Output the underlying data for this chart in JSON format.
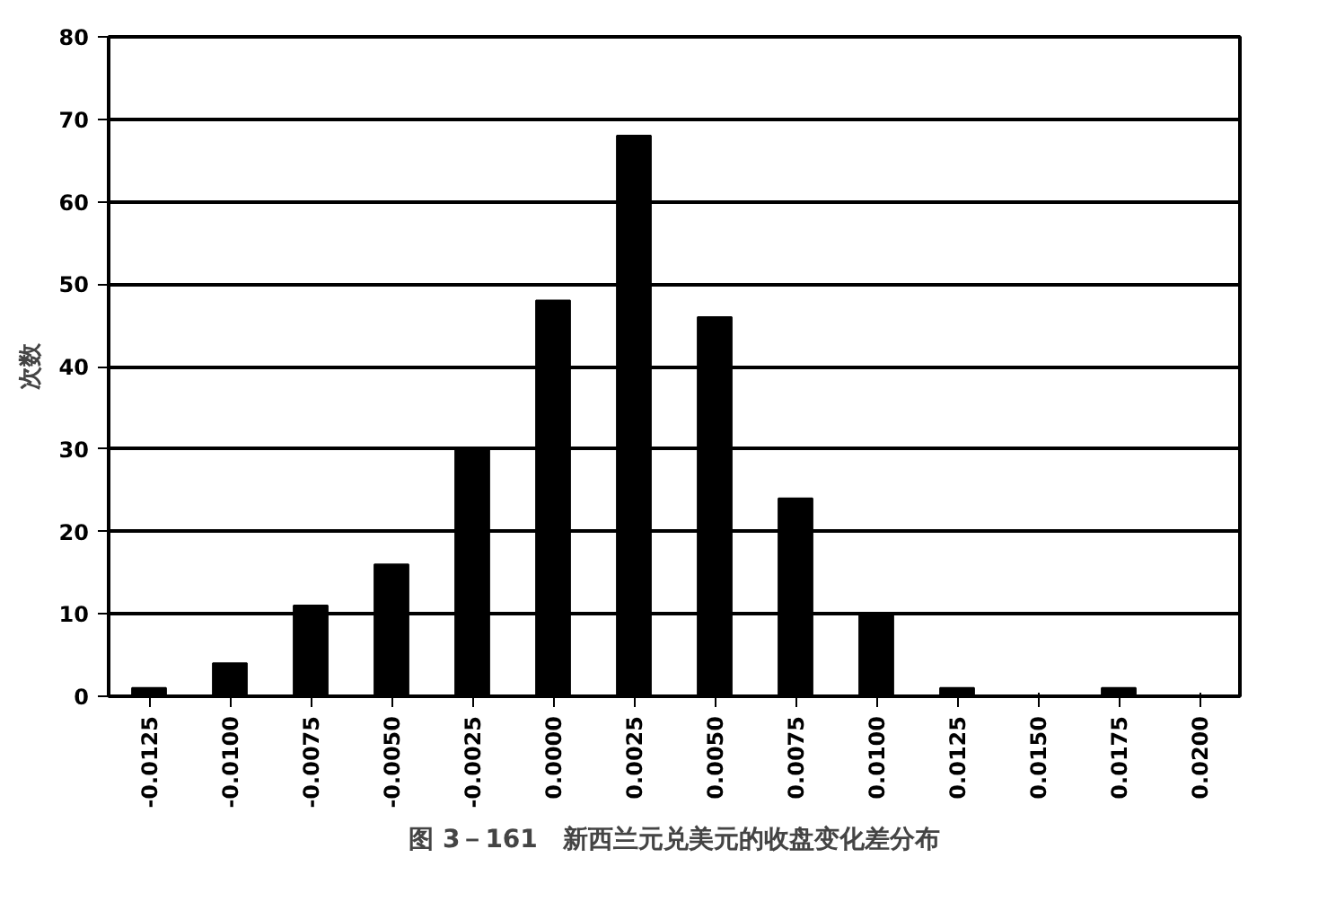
{
  "chart_data": {
    "type": "bar",
    "title": "图 3－161　新西兰元兑美元的收盘变化差分布",
    "ylabel": "次数",
    "categories": [
      "-0.0125",
      "-0.0100",
      "-0.0075",
      "-0.0050",
      "-0.0025",
      "0.0000",
      "0.0025",
      "0.0050",
      "0.0075",
      "0.0100",
      "0.0125",
      "0.0150",
      "0.0175",
      "0.0200"
    ],
    "values": [
      1,
      4,
      11,
      16,
      30,
      48,
      68,
      46,
      24,
      10,
      1,
      0,
      1,
      0
    ],
    "color": "#000000",
    "ylim": [
      0,
      80
    ],
    "yticks": [
      0,
      10,
      20,
      30,
      40,
      50,
      60,
      70,
      80
    ],
    "grid": "y"
  }
}
